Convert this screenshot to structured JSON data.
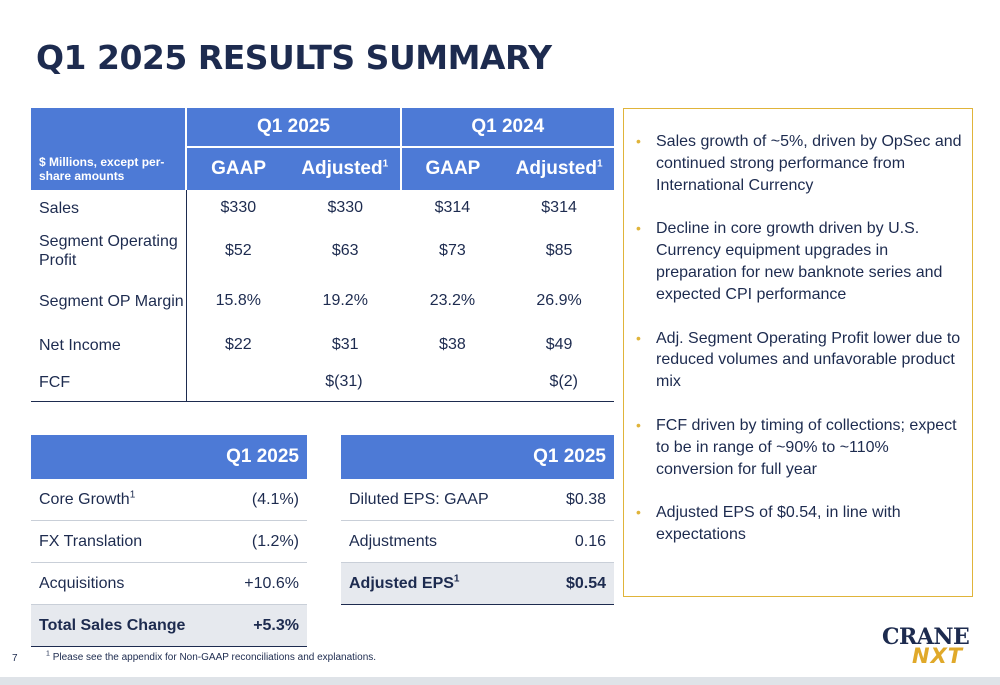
{
  "title": "Q1 2025 RESULTS SUMMARY",
  "main_table": {
    "unit_label": "$ Millions, except per-share amounts",
    "periods": [
      "Q1 2025",
      "Q1 2024"
    ],
    "columns": [
      "GAAP",
      "Adjusted",
      "GAAP",
      "Adjusted"
    ],
    "footnote_mark": "1",
    "rows": [
      {
        "label": "Sales",
        "values": [
          "$330",
          "$330",
          "$314",
          "$314"
        ]
      },
      {
        "label": "Segment Operating Profit",
        "values": [
          "$52",
          "$63",
          "$73",
          "$85"
        ]
      },
      {
        "label": "Segment OP Margin",
        "values": [
          "15.8%",
          "19.2%",
          "23.2%",
          "26.9%"
        ]
      },
      {
        "label": "Net Income",
        "values": [
          "$22",
          "$31",
          "$38",
          "$49"
        ]
      },
      {
        "label": "FCF",
        "q1_2025": "$(31)",
        "q1_2024": "$(2)"
      }
    ]
  },
  "growth_table": {
    "header": "Q1 2025",
    "rows": [
      {
        "label": "Core Growth",
        "sup": "1",
        "value": "(4.1%)"
      },
      {
        "label": "FX Translation",
        "value": "(1.2%)"
      },
      {
        "label": "Acquisitions",
        "value": "+10.6%"
      }
    ],
    "total": {
      "label": "Total Sales Change",
      "value": "+5.3%"
    }
  },
  "eps_table": {
    "header": "Q1 2025",
    "rows": [
      {
        "label": "Diluted EPS: GAAP",
        "value": "$0.38"
      },
      {
        "label": "Adjustments",
        "value": "0.16"
      }
    ],
    "total": {
      "label": "Adjusted EPS",
      "sup": "1",
      "value": "$0.54"
    }
  },
  "bullets": [
    "Sales growth of ~5%, driven by OpSec and continued strong performance from International Currency",
    "Decline in core growth driven by U.S. Currency equipment upgrades in preparation for new banknote series and expected CPI performance",
    "Adj. Segment Operating Profit lower due to reduced volumes and unfavorable product mix",
    "FCF driven by timing of collections; expect to be in range of ~90% to ~110% conversion for full year",
    "Adjusted EPS of $0.54, in line with expectations"
  ],
  "page_number": "7",
  "footnote": {
    "mark": "1",
    "text": "Please see the appendix for Non-GAAP reconciliations and explanations."
  },
  "logo": {
    "line1": "CRANE",
    "line2": "NXT"
  },
  "colors": {
    "header_blue": "#4d7ad6",
    "navy": "#1d2b4f",
    "gold": "#e0b43a",
    "total_gray": "#e6e9ee"
  }
}
